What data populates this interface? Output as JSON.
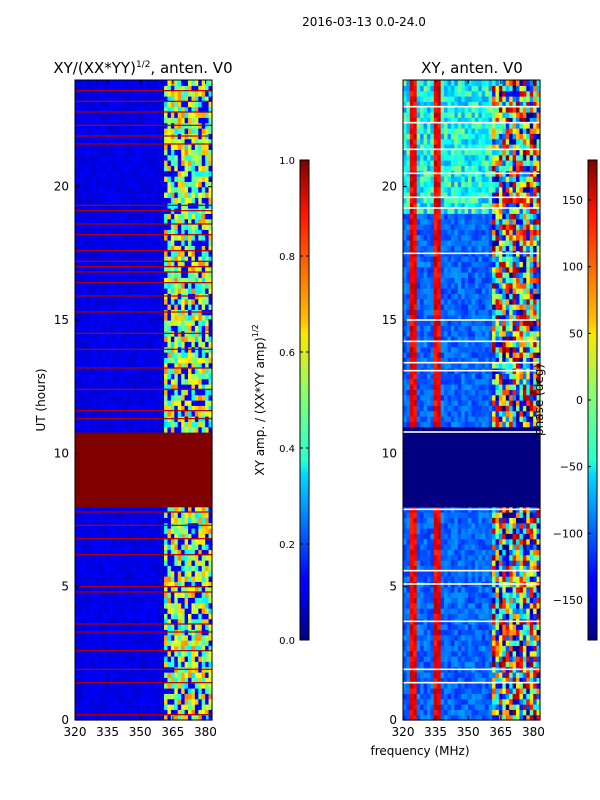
{
  "figure": {
    "suptitle": "2016-03-13 0.0-24.0",
    "xlabel": "frequency (MHz)"
  },
  "chart_data": [
    {
      "type": "heatmap",
      "title": "XY/(XX*YY)",
      "title_sup": "1/2",
      "title_tail": ", anten. V0",
      "ylabel": "UT (hours)",
      "xlim": [
        320,
        383
      ],
      "ylim": [
        0,
        24
      ],
      "xticks": [
        320,
        335,
        350,
        365,
        380
      ],
      "yticks": [
        0,
        5,
        10,
        15,
        20
      ],
      "colormap": "jet",
      "colorbar": {
        "label": "XY amp. / (XX*YY amp)",
        "label_sup": "1/2",
        "range": [
          0.0,
          1.0
        ],
        "ticks": [
          "0.0",
          "0.2",
          "0.4",
          "0.6",
          "0.8",
          "1.0"
        ]
      },
      "features": {
        "background_value": 0.1,
        "saturated_block_ut": [
          8.0,
          10.8
        ],
        "saturated_block_value": 1.0,
        "high_band_mhz": [
          361,
          383
        ],
        "high_band_value_range": [
          0.35,
          0.75
        ],
        "flagged_rows_ut": [
          0.2,
          1.4,
          1.9,
          2.6,
          3.3,
          3.6,
          4.8,
          5.0,
          6.2,
          6.8,
          7.3,
          7.8,
          11.3,
          11.6,
          12.4,
          13.2,
          13.9,
          14.5,
          15.3,
          15.9,
          16.4,
          16.8,
          17.0,
          17.2,
          17.6,
          18.2,
          18.6,
          19.1,
          19.3,
          21.6,
          21.9,
          22.3,
          22.8,
          23.2,
          23.6
        ]
      }
    },
    {
      "type": "heatmap",
      "title": "XY, anten. V0",
      "ylabel": "",
      "xlim": [
        320,
        383
      ],
      "ylim": [
        0,
        24
      ],
      "xticks": [
        320,
        335,
        350,
        365,
        380
      ],
      "yticks": [
        0,
        5,
        10,
        15,
        20
      ],
      "colormap": "jet",
      "colorbar": {
        "label": "phase (deg)",
        "range": [
          -180,
          180
        ],
        "ticks": [
          "150",
          "100",
          "50",
          "0",
          "−50",
          "−100",
          "−150"
        ],
        "tick_values": [
          150,
          100,
          50,
          0,
          -50,
          -100,
          -150
        ]
      },
      "features": {
        "background_phase_deg": -100,
        "blocked_region_ut": [
          8.0,
          11.0
        ],
        "blocked_value_deg": -180,
        "hot_stripes_mhz": [
          [
            323,
            326
          ],
          [
            334,
            337
          ]
        ],
        "hot_stripe_value_deg": 160,
        "noisy_band_mhz": [
          361,
          383
        ],
        "white_rows_ut": [
          1.4,
          1.9,
          3.7,
          5.1,
          5.6,
          7.9,
          10.8,
          13.1,
          13.4,
          14.2,
          15.0,
          17.5,
          19.2,
          19.6,
          20.5,
          21.4,
          22.4,
          23.0
        ]
      }
    }
  ]
}
